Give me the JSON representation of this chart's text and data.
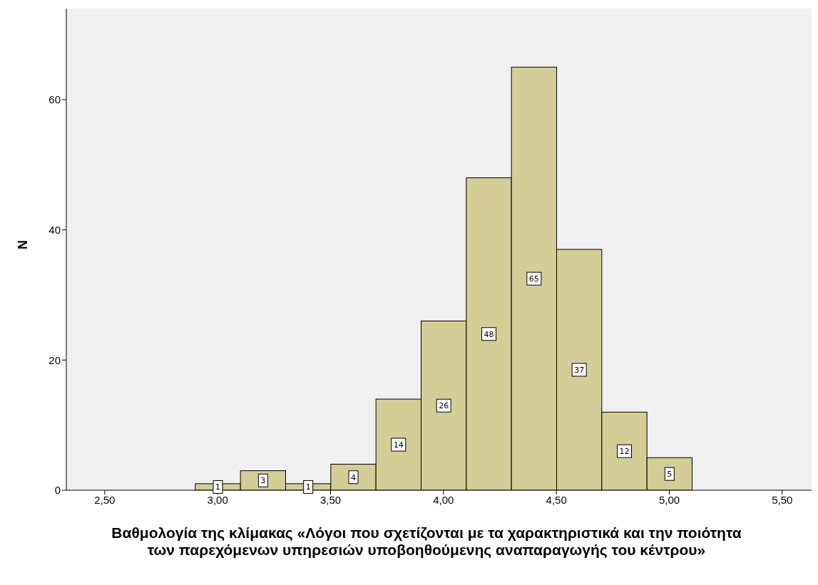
{
  "chart_data": {
    "type": "histogram",
    "xlabel": "Βαθμολογία της κλίμακας «Λόγοι που σχετίζονται με τα χαρακτηριστικά και την ποιότητα των παρεχόμενων υπηρεσιών υποβοηθούμενης αναπαραγωγής του κέντρου»",
    "ylabel": "N",
    "bins": [
      2.9,
      3.1,
      3.3,
      3.5,
      3.7,
      3.9,
      4.1,
      4.3,
      4.5,
      4.7,
      4.9,
      5.1
    ],
    "values": [
      1,
      3,
      1,
      4,
      14,
      26,
      48,
      65,
      37,
      12,
      5
    ],
    "color": "#d3ce97",
    "data_labels": true,
    "xlim": [
      2.33,
      5.63
    ],
    "xticks": [
      {
        "value": 2.5,
        "label": "2,50"
      },
      {
        "value": 3,
        "label": "3,00"
      },
      {
        "value": 3.5,
        "label": "3,50"
      },
      {
        "value": 4,
        "label": "4,00"
      },
      {
        "value": 4.5,
        "label": "4,50"
      },
      {
        "value": 5,
        "label": "5,00"
      },
      {
        "value": 5.5,
        "label": "5,50"
      }
    ],
    "ylim": [
      0,
      74
    ],
    "yticks": [
      0,
      20,
      40,
      60
    ],
    "grid": false
  }
}
